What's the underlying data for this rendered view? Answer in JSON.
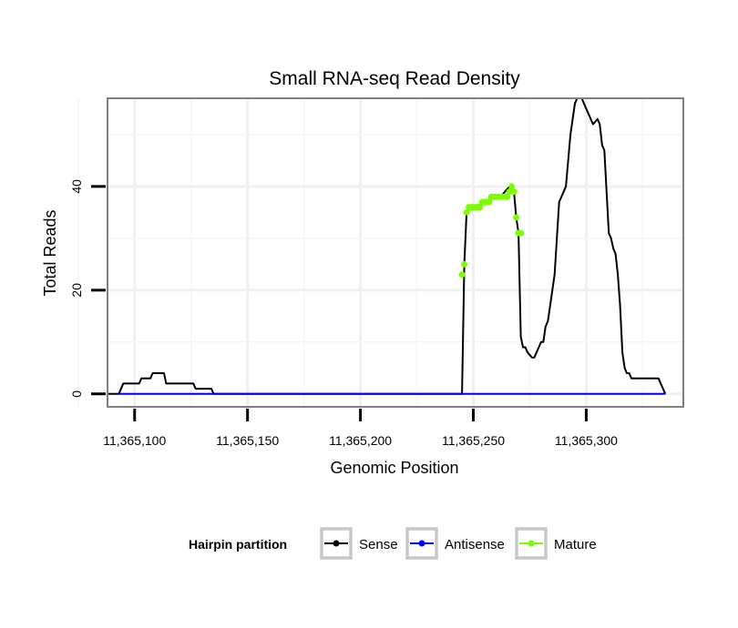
{
  "chart_data": {
    "type": "line",
    "title": "Small RNA-seq Read Density",
    "xlabel": "Genomic Position",
    "ylabel": "Total Reads",
    "xlim": [
      11365088,
      11365343
    ],
    "ylim": [
      -2.5,
      57
    ],
    "x_ticks": [
      11365100,
      11365150,
      11365200,
      11365250,
      11365300
    ],
    "x_tick_labels": [
      "11,365,100",
      "11,365,150",
      "11,365,200",
      "11,365,250",
      "11,365,300"
    ],
    "y_ticks": [
      0,
      20,
      40
    ],
    "y_tick_labels": [
      "0",
      "20",
      "40"
    ],
    "grid": true,
    "legend": {
      "title": "Hairpin partition",
      "position": "bottom",
      "entries": [
        "Sense",
        "Antisense",
        "Mature"
      ]
    },
    "series": [
      {
        "name": "Sense",
        "color": "#000000",
        "x": [
          11365088,
          11365093,
          11365095,
          11365102,
          11365103,
          11365107,
          11365108,
          11365113,
          11365114,
          11365126,
          11365127,
          11365134,
          11365135,
          11365245,
          11365246,
          11365247,
          11365248,
          11365250,
          11365252,
          11365254,
          11365256,
          11365258,
          11365260,
          11365262,
          11365264,
          11365266,
          11365268,
          11365269,
          11365270,
          11365271,
          11365272,
          11365273,
          11365274,
          11365276,
          11365277,
          11365278,
          11365279,
          11365280,
          11365281,
          11365282,
          11365283,
          11365284,
          11365286,
          11365288,
          11365289,
          11365291,
          11365293,
          11365295,
          11365296,
          11365297,
          11365298,
          11365300,
          11365303,
          11365305,
          11365306,
          11365307,
          11365308,
          11365310,
          11365311,
          11365312,
          11365313,
          11365314,
          11365315,
          11365316,
          11365317,
          11365318,
          11365319,
          11365320,
          11365321,
          11365322,
          11365323,
          11365332,
          11365334,
          11365335
        ],
        "values": [
          0,
          0,
          2,
          2,
          3,
          3,
          4,
          4,
          2,
          2,
          1,
          1,
          0,
          0,
          25,
          35,
          36,
          36,
          36,
          37,
          37,
          38,
          38,
          38,
          39,
          40,
          39,
          34,
          31,
          11,
          9,
          9,
          8,
          7,
          7,
          8,
          9,
          10,
          10,
          13,
          14,
          17,
          23,
          37,
          38,
          40,
          50,
          56,
          57,
          57,
          57,
          55,
          52,
          53,
          52,
          48,
          47,
          31,
          30,
          28,
          27,
          23,
          17,
          8,
          5,
          4,
          4,
          3,
          3,
          3,
          3,
          3,
          1,
          0
        ]
      },
      {
        "name": "Antisense",
        "color": "#0000ff",
        "x": [
          11365093,
          11365335
        ],
        "values": [
          0,
          0
        ]
      },
      {
        "name": "Mature",
        "color": "#7cfc00",
        "x": [
          11365245,
          11365246,
          11365247,
          11365248,
          11365249,
          11365250,
          11365251,
          11365252,
          11365253,
          11365254,
          11365255,
          11365256,
          11365257,
          11365258,
          11365259,
          11365260,
          11365261,
          11365262,
          11365263,
          11365264,
          11365265,
          11365266,
          11365267,
          11365268,
          11365269,
          11365270,
          11365271
        ],
        "values": [
          23,
          25,
          35,
          36,
          36,
          36,
          36,
          36,
          36,
          37,
          37,
          37,
          37,
          38,
          38,
          38,
          38,
          38,
          38,
          38,
          38,
          39,
          40,
          39,
          34,
          31,
          31
        ]
      }
    ]
  }
}
